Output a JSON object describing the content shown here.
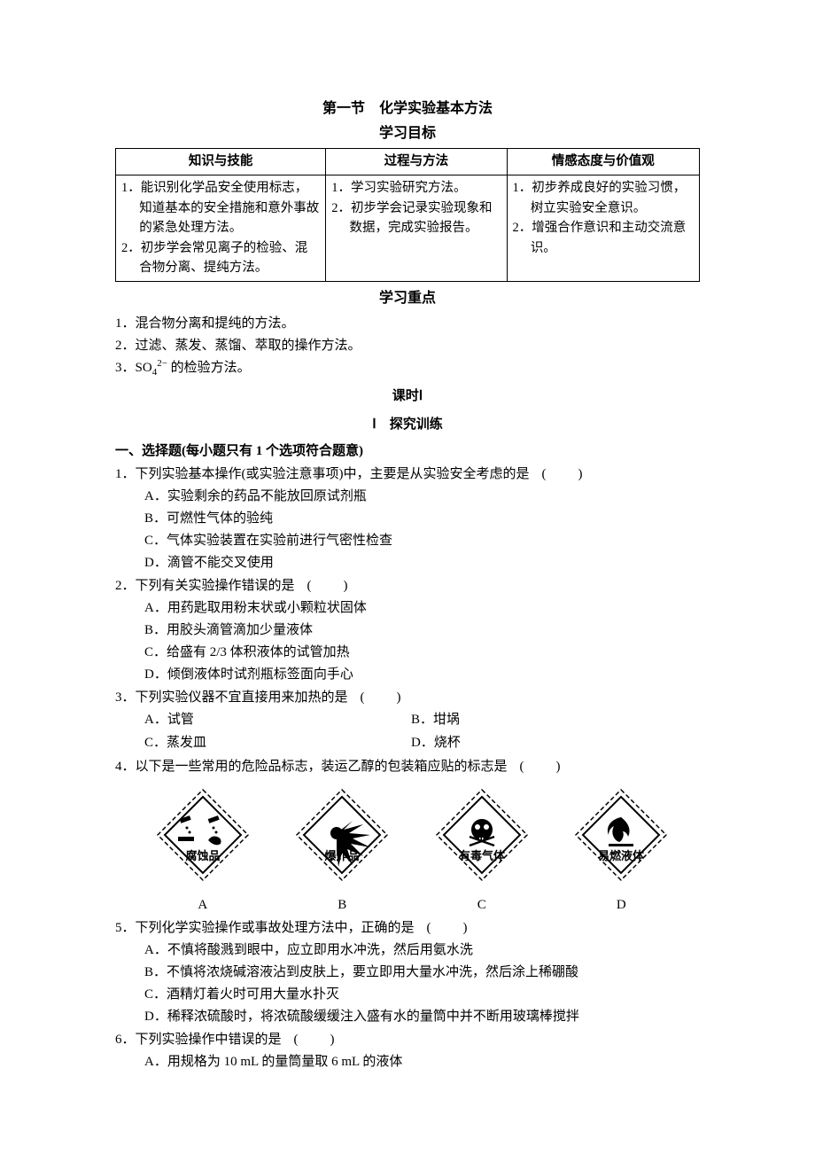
{
  "header": {
    "title": "第一节　化学实验基本方法",
    "subtitle": "学习目标"
  },
  "table": {
    "headers": [
      "知识与技能",
      "过程与方法",
      "情感态度与价值观"
    ],
    "rows": [
      {
        "c1": "1．能识别化学品安全使用标志，知道基本的安全措施和意外事故的紧急处理方法。",
        "c2": "1．学习实验研究方法。",
        "c3": "1．初步养成良好的实验习惯，树立实验安全意识。"
      },
      {
        "c1": "2．初步学会常见离子的检验、混合物分离、提纯方法。",
        "c2": "2．初步学会记录实验现象和数据，完成实验报告。",
        "c3": "2．增强合作意识和主动交流意识。"
      }
    ]
  },
  "focus": {
    "title": "学习重点",
    "items": [
      "1．混合物分离和提纯的方法。",
      "2．过滤、蒸发、蒸馏、萃取的操作方法。",
      "3．SO₄²⁻ 的检验方法。"
    ],
    "item3_prefix": "3．SO",
    "item3_suffix": " 的检验方法。"
  },
  "lesson": {
    "line1": "课时Ⅰ",
    "line2": "Ⅰ　探究训练"
  },
  "mcq_header": "一、选择题(每小题只有 1 个选项符合题意)",
  "blank": "(　　)",
  "hazard": {
    "labels": [
      "A",
      "B",
      "C",
      "D"
    ],
    "captions": [
      "腐蚀品",
      "爆炸品",
      "有毒气体",
      "易燃液体"
    ],
    "stroke": "#000000",
    "fill": "#ffffff",
    "size": 110
  },
  "questions": [
    {
      "n": "1．",
      "stem": "下列实验基本操作(或实验注意事项)中，主要是从实验安全考虑的是",
      "opts": [
        "A．实验剩余的药品不能放回原试剂瓶",
        "B．可燃性气体的验纯",
        "C．气体实验装置在实验前进行气密性检查",
        "D．滴管不能交叉使用"
      ],
      "layout": "1col"
    },
    {
      "n": "2．",
      "stem": "下列有关实验操作错误的是",
      "opts": [
        "A．用药匙取用粉末状或小颗粒状固体",
        "B．用胶头滴管滴加少量液体",
        "C．给盛有 2/3 体积液体的试管加热",
        "D．倾倒液体时试剂瓶标签面向手心"
      ],
      "layout": "1col"
    },
    {
      "n": "3．",
      "stem": "下列实验仪器不宜直接用来加热的是",
      "opts": [
        "A．试管",
        "B．坩埚",
        "C．蒸发皿",
        "D．烧杯"
      ],
      "layout": "2col"
    },
    {
      "n": "4．",
      "stem": "以下是一些常用的危险品标志，装运乙醇的包装箱应贴的标志是",
      "opts": [],
      "layout": "hazard"
    },
    {
      "n": "5．",
      "stem": "下列化学实验操作或事故处理方法中，正确的是",
      "opts": [
        "A．不慎将酸溅到眼中，应立即用水冲洗，然后用氨水洗",
        "B．不慎将浓烧碱溶液沾到皮肤上，要立即用大量水冲洗，然后涂上稀硼酸",
        "C．酒精灯着火时可用大量水扑灭",
        "D．稀释浓硫酸时，将浓硫酸缓缓注入盛有水的量筒中并不断用玻璃棒搅拌"
      ],
      "layout": "1col"
    },
    {
      "n": "6．",
      "stem": "下列实验操作中错误的是",
      "opts": [
        "A．用规格为 10 mL 的量筒量取 6 mL 的液体"
      ],
      "layout": "1col"
    }
  ]
}
